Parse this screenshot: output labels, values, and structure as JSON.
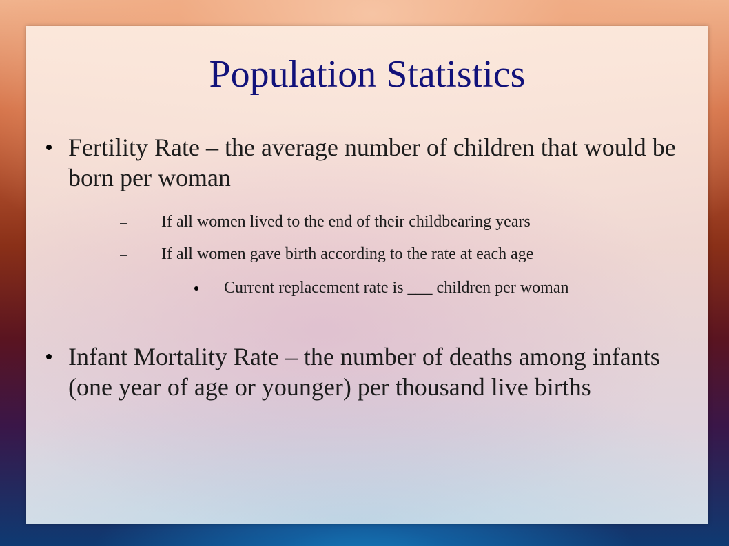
{
  "slide": {
    "title": "Population Statistics",
    "bullets": [
      "Fertility Rate – the average number of children that would be born per woman",
      "Infant Mortality Rate – the number of deaths among infants (one year of age or younger) per thousand live births"
    ],
    "sub_bullets": [
      "If all women lived to the end of their childbearing years",
      "If all women gave birth according to the rate at each age"
    ],
    "sub_sub_bullets": [
      "Current replacement rate is ___ children per woman"
    ]
  }
}
